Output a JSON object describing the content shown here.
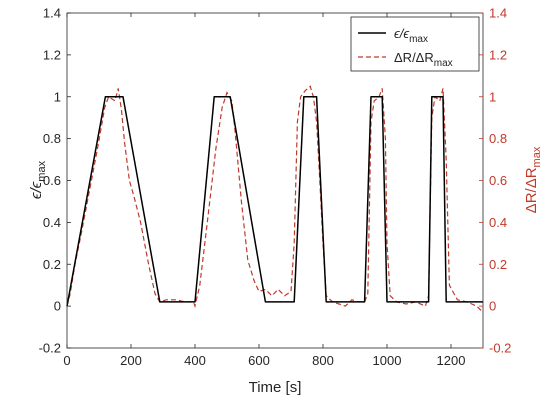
{
  "chart_data": {
    "type": "line",
    "xlabel": "Time [s]",
    "ylabel_left": {
      "base": "ϵ/ϵ",
      "sub": "max"
    },
    "ylabel_right": {
      "base": "ΔR/ΔR",
      "sub": "max"
    },
    "xlim": [
      0,
      1300
    ],
    "ylim_left": [
      -0.2,
      1.4
    ],
    "ylim_right": [
      -0.2,
      1.4
    ],
    "x_ticks": [
      0,
      200,
      400,
      600,
      800,
      1000,
      1200
    ],
    "x_tick_labels": [
      "0",
      "200",
      "400",
      "600",
      "800",
      "1000",
      "1200"
    ],
    "y_ticks": [
      -0.2,
      0,
      0.2,
      0.4,
      0.6,
      0.8,
      1,
      1.2,
      1.4
    ],
    "y_tick_labels": [
      "-0.2",
      "0",
      "0.2",
      "0.4",
      "0.6",
      "0.8",
      "1",
      "1.2",
      "1.4"
    ],
    "grid": false,
    "legend_position": "top-right",
    "colors": {
      "left_axis": "#1f1f1f",
      "right_axis": "#c0392b",
      "strain": "#000000",
      "resistance": "#c0392b"
    },
    "series": [
      {
        "name": {
          "base": "ϵ/ϵ",
          "sub": "max"
        },
        "style": "solid",
        "x": [
          0,
          120,
          175,
          290,
          400,
          460,
          510,
          620,
          710,
          740,
          780,
          810,
          930,
          950,
          985,
          1000,
          1130,
          1140,
          1175,
          1185,
          1300
        ],
        "y": [
          0,
          1,
          1,
          0.02,
          0.02,
          1,
          1,
          0.02,
          0.02,
          1,
          1,
          0.02,
          0.02,
          1,
          1,
          0.02,
          0.02,
          1,
          1,
          0.02,
          0.02
        ]
      },
      {
        "name": {
          "base": "ΔR/ΔR",
          "sub": "max"
        },
        "style": "dashed",
        "x": [
          0,
          10,
          25,
          45,
          70,
          95,
          118,
          130,
          150,
          160,
          170,
          180,
          195,
          210,
          230,
          255,
          275,
          290,
          310,
          340,
          370,
          395,
          400,
          415,
          440,
          465,
          485,
          500,
          515,
          525,
          545,
          565,
          585,
          600,
          620,
          640,
          660,
          680,
          700,
          710,
          720,
          730,
          745,
          760,
          770,
          780,
          790,
          800,
          810,
          830,
          850,
          870,
          890,
          910,
          930,
          940,
          950,
          960,
          975,
          985,
          995,
          1000,
          1010,
          1030,
          1060,
          1090,
          1120,
          1130,
          1140,
          1150,
          1165,
          1175,
          1185,
          1195,
          1220,
          1250,
          1280,
          1300
        ],
        "y": [
          0,
          0.06,
          0.2,
          0.35,
          0.55,
          0.75,
          0.95,
          1.0,
          0.98,
          1.04,
          0.94,
          0.78,
          0.6,
          0.52,
          0.4,
          0.2,
          0.06,
          0.02,
          0.03,
          0.03,
          0.02,
          0.02,
          0.0,
          0.1,
          0.42,
          0.75,
          0.95,
          1.02,
          0.98,
          0.84,
          0.5,
          0.22,
          0.12,
          0.07,
          0.08,
          0.05,
          0.08,
          0.05,
          0.07,
          0.3,
          0.88,
          1.0,
          1.03,
          1.05,
          1.0,
          0.88,
          0.6,
          0.3,
          0.05,
          0.02,
          0.01,
          0.0,
          0.03,
          0.02,
          0.02,
          0.06,
          0.88,
          0.98,
          1.0,
          1.04,
          0.8,
          0.3,
          0.05,
          0.02,
          0.01,
          0.02,
          0.0,
          0.05,
          0.9,
          1.0,
          0.98,
          1.04,
          0.7,
          0.1,
          0.03,
          0.02,
          0.0,
          -0.03
        ]
      }
    ]
  }
}
